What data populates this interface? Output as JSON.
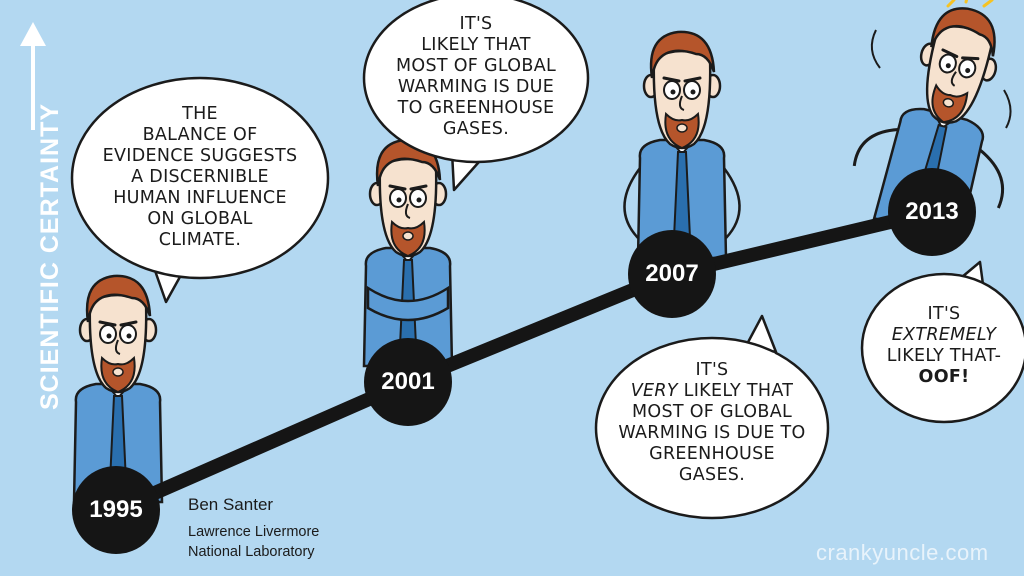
{
  "axis_label": "SCIENTIFIC CERTAINTY",
  "timeline": {
    "nodes": [
      {
        "year": "1995"
      },
      {
        "year": "2001"
      },
      {
        "year": "2007"
      },
      {
        "year": "2013"
      }
    ]
  },
  "bubbles": {
    "b1995": {
      "lines": [
        "THE",
        "BALANCE OF",
        "EVIDENCE SUGGESTS",
        "A DISCERNIBLE",
        "HUMAN INFLUENCE",
        "ON GLOBAL",
        "CLIMATE."
      ]
    },
    "b2001": {
      "lines": [
        "IT'S",
        "LIKELY THAT",
        "MOST OF GLOBAL",
        "WARMING IS DUE",
        "TO GREENHOUSE",
        "GASES."
      ]
    },
    "b2007": {
      "line1": "IT'S",
      "line2_em": "VERY",
      "line2_rest": " LIKELY THAT",
      "line3": "MOST OF GLOBAL",
      "line4": "WARMING IS DUE TO",
      "line5": "GREENHOUSE",
      "line6": "GASES."
    },
    "b2013": {
      "line1": "IT'S",
      "line2_em": "EXTREMELY",
      "line3": "LIKELY THAT-",
      "line4_bold": "OOF!"
    }
  },
  "credit": {
    "name": "Ben Santer",
    "org_line1": "Lawrence Livermore",
    "org_line2": "National Laboratory"
  },
  "watermark": "crankyuncle.com",
  "colors": {
    "background": "#b3d8f1",
    "shirt": "#5b9bd5",
    "tie": "#2a6fae",
    "hair": "#b5552b",
    "node": "#151515"
  }
}
